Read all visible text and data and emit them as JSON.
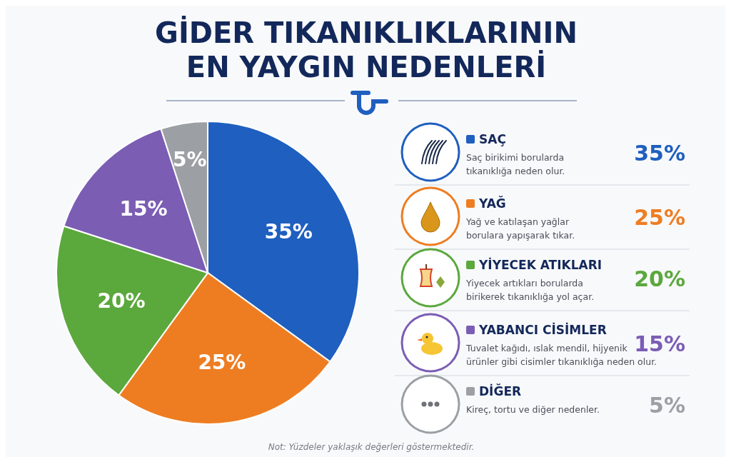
{
  "chart_data": {
    "type": "pie",
    "title": "GİDER TIKANIKLIKLARININ\nEN YAYGIN NEDENLERİ",
    "categories": [
      "SAÇ",
      "YAĞ",
      "YİYECEK ATIKLARI",
      "YABANCI CİSİMLER",
      "DİĞER"
    ],
    "values": [
      35,
      25,
      20,
      15,
      5
    ],
    "value_labels": [
      "35%",
      "25%",
      "20%",
      "15%",
      "5%"
    ],
    "colors": [
      "#1f5fbf",
      "#ee7d22",
      "#5ba83d",
      "#7b5db4",
      "#9c9fa4"
    ],
    "legend": "right",
    "annotations": [
      "Saç birikimi borularda\ntıkanıklığa neden olur.",
      "Yağ ve katılaşan yağlar\nborulara yapışarak tıkar.",
      "Yiyecek artıkları borularda\nbirikerek tıkanıklığa yol açar.",
      "Tuvalet kağıdı, ıslak mendil, hijyenik\nürünler gibi cisimler tıkanıklığa neden olur.",
      "Kireç, tortu ve diğer nedenler.",
      "Not: Yüzdeler yaklaşık değerleri göstermektedir."
    ]
  }
}
